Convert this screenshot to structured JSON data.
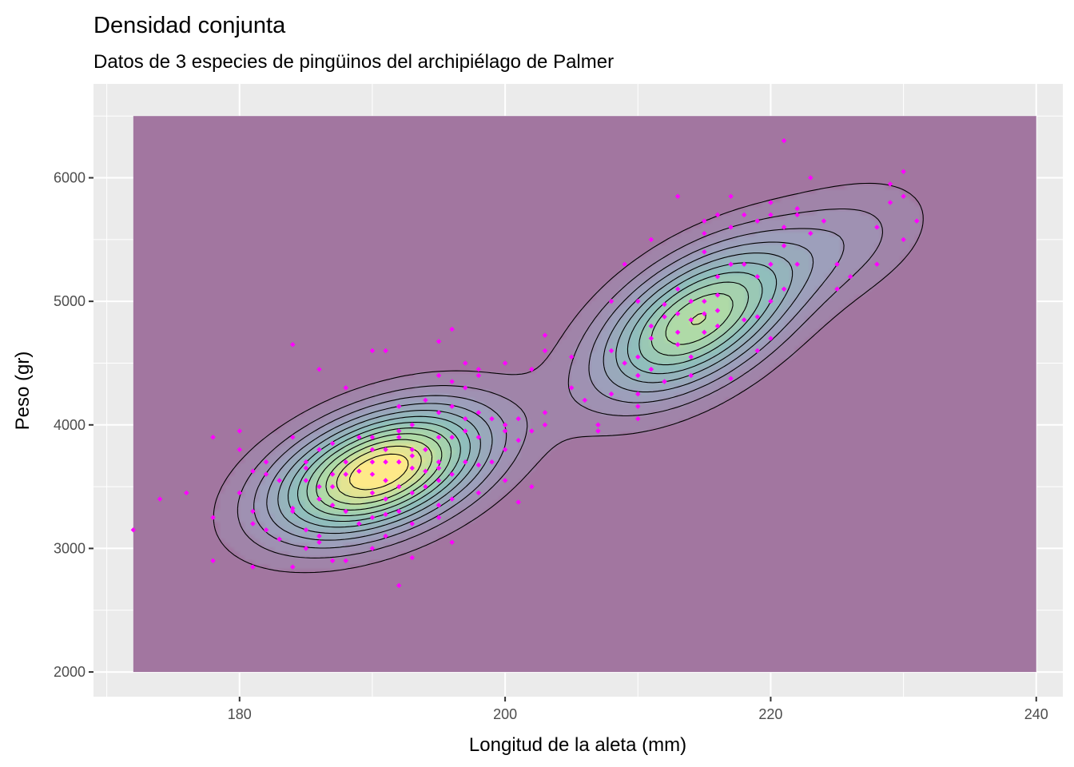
{
  "chart_data": {
    "type": "contour",
    "title": "Densidad conjunta",
    "subtitle": "Datos de 3 especies de pingüinos del archipiélago de Palmer",
    "xlabel": "Longitud de la aleta (mm)",
    "ylabel": "Peso (gr)",
    "xlim": [
      169,
      242
    ],
    "ylim": [
      1800,
      6760
    ],
    "x_ticks": [
      180,
      200,
      220,
      240
    ],
    "y_ticks": [
      2000,
      3000,
      4000,
      5000,
      6000
    ],
    "x_tick_labels": [
      "180",
      "200",
      "220",
      "240"
    ],
    "y_tick_labels": [
      "2000",
      "3000",
      "4000",
      "5000",
      "6000"
    ],
    "density_extent": {
      "x": [
        172,
        240
      ],
      "y": [
        2000,
        6500
      ]
    },
    "grid": true,
    "legend": "none",
    "colors": {
      "panel_background": "#ebebeb",
      "grid": "#ffffff",
      "density_low": "#440154",
      "density_high": "#fde725",
      "fill_alpha": 0.5,
      "contour_line": "#000000",
      "points": "#ff00ff"
    },
    "density_components": [
      {
        "mx": 190.5,
        "my": 3620,
        "sx": 5.5,
        "sy": 360,
        "rho": 0.45,
        "w": 0.52
      },
      {
        "mx": 214.5,
        "my": 4850,
        "sx": 5.2,
        "sy": 430,
        "rho": 0.55,
        "w": 0.4
      },
      {
        "mx": 226,
        "my": 5500,
        "sx": 4.5,
        "sy": 350,
        "rho": 0.4,
        "w": 0.08
      }
    ],
    "contour_levels": 13,
    "points": [
      [
        172,
        3150
      ],
      [
        174,
        3400
      ],
      [
        176,
        3450
      ],
      [
        178,
        3250
      ],
      [
        178,
        2900
      ],
      [
        178,
        3900
      ],
      [
        180,
        3950
      ],
      [
        180,
        3800
      ],
      [
        180,
        3450
      ],
      [
        181,
        3625
      ],
      [
        181,
        3300
      ],
      [
        181,
        3200
      ],
      [
        181,
        2850
      ],
      [
        182,
        3700
      ],
      [
        182,
        3150
      ],
      [
        182,
        3600
      ],
      [
        183,
        3550
      ],
      [
        183,
        3075
      ],
      [
        184,
        4650
      ],
      [
        184,
        3900
      ],
      [
        184,
        3300
      ],
      [
        184,
        2850
      ],
      [
        184,
        3325
      ],
      [
        185,
        3650
      ],
      [
        185,
        3700
      ],
      [
        185,
        3550
      ],
      [
        185,
        3150
      ],
      [
        185,
        3000
      ],
      [
        186,
        4450
      ],
      [
        186,
        3500
      ],
      [
        186,
        3800
      ],
      [
        186,
        3100
      ],
      [
        186,
        3050
      ],
      [
        186,
        3400
      ],
      [
        187,
        3600
      ],
      [
        187,
        3850
      ],
      [
        187,
        2900
      ],
      [
        187,
        3350
      ],
      [
        187,
        3500
      ],
      [
        188,
        4300
      ],
      [
        188,
        3700
      ],
      [
        188,
        3300
      ],
      [
        188,
        2900
      ],
      [
        188,
        3600
      ],
      [
        189,
        3900
      ],
      [
        189,
        3200
      ],
      [
        189,
        3625
      ],
      [
        190,
        4600
      ],
      [
        190,
        3450
      ],
      [
        190,
        3800
      ],
      [
        190,
        3700
      ],
      [
        190,
        3250
      ],
      [
        190,
        3900
      ],
      [
        190,
        3600
      ],
      [
        190,
        3000
      ],
      [
        191,
        4600
      ],
      [
        191,
        3700
      ],
      [
        191,
        3100
      ],
      [
        191,
        3400
      ],
      [
        191,
        3800
      ],
      [
        191,
        3550
      ],
      [
        191,
        3275
      ],
      [
        192,
        4150
      ],
      [
        192,
        3500
      ],
      [
        192,
        3700
      ],
      [
        192,
        3950
      ],
      [
        192,
        3300
      ],
      [
        192,
        2700
      ],
      [
        192,
        3900
      ],
      [
        193,
        4000
      ],
      [
        193,
        3800
      ],
      [
        193,
        3450
      ],
      [
        193,
        3650
      ],
      [
        193,
        2925
      ],
      [
        193,
        3200
      ],
      [
        193,
        3750
      ],
      [
        194,
        4200
      ],
      [
        194,
        3500
      ],
      [
        194,
        3625
      ],
      [
        194,
        3800
      ],
      [
        195,
        4400
      ],
      [
        195,
        3700
      ],
      [
        195,
        4100
      ],
      [
        195,
        3350
      ],
      [
        195,
        3900
      ],
      [
        195,
        4675
      ],
      [
        195,
        3250
      ],
      [
        195,
        3550
      ],
      [
        195,
        3650
      ],
      [
        196,
        3900
      ],
      [
        196,
        4150
      ],
      [
        196,
        3600
      ],
      [
        196,
        3400
      ],
      [
        196,
        4775
      ],
      [
        196,
        3050
      ],
      [
        196,
        4350
      ],
      [
        197,
        3700
      ],
      [
        197,
        4500
      ],
      [
        197,
        3950
      ],
      [
        197,
        4050
      ],
      [
        197,
        4300
      ],
      [
        198,
        4100
      ],
      [
        198,
        3450
      ],
      [
        198,
        3675
      ],
      [
        198,
        3900
      ],
      [
        198,
        4400
      ],
      [
        198,
        4450
      ],
      [
        199,
        4050
      ],
      [
        199,
        3700
      ],
      [
        200,
        3950
      ],
      [
        200,
        4000
      ],
      [
        200,
        3800
      ],
      [
        200,
        4500
      ],
      [
        200,
        3550
      ],
      [
        201,
        4050
      ],
      [
        201,
        3375
      ],
      [
        201,
        3875
      ],
      [
        202,
        3500
      ],
      [
        202,
        3950
      ],
      [
        202,
        4450
      ],
      [
        203,
        4100
      ],
      [
        203,
        4725
      ],
      [
        203,
        4000
      ],
      [
        203,
        4600
      ],
      [
        205,
        4550
      ],
      [
        205,
        4300
      ],
      [
        206,
        4200
      ],
      [
        207,
        3950
      ],
      [
        207,
        4000
      ],
      [
        208,
        5000
      ],
      [
        208,
        4250
      ],
      [
        208,
        4600
      ],
      [
        209,
        5300
      ],
      [
        209,
        4500
      ],
      [
        210,
        5000
      ],
      [
        210,
        4250
      ],
      [
        210,
        4150
      ],
      [
        210,
        4550
      ],
      [
        210,
        4400
      ],
      [
        210,
        4050
      ],
      [
        211,
        4800
      ],
      [
        211,
        4700
      ],
      [
        211,
        4450
      ],
      [
        211,
        5500
      ],
      [
        212,
        4350
      ],
      [
        212,
        4875
      ],
      [
        212,
        4975
      ],
      [
        213,
        5100
      ],
      [
        213,
        4650
      ],
      [
        213,
        4900
      ],
      [
        213,
        4750
      ],
      [
        213,
        5850
      ],
      [
        214,
        4550
      ],
      [
        214,
        4400
      ],
      [
        214,
        5000
      ],
      [
        214,
        4850
      ],
      [
        215,
        5400
      ],
      [
        215,
        5000
      ],
      [
        215,
        4900
      ],
      [
        215,
        5650
      ],
      [
        215,
        4750
      ],
      [
        215,
        5550
      ],
      [
        216,
        5050
      ],
      [
        216,
        5200
      ],
      [
        216,
        4800
      ],
      [
        216,
        5700
      ],
      [
        216,
        4925
      ],
      [
        217,
        5600
      ],
      [
        217,
        5850
      ],
      [
        217,
        4375
      ],
      [
        217,
        5300
      ],
      [
        218,
        5700
      ],
      [
        218,
        5300
      ],
      [
        218,
        4850
      ],
      [
        219,
        5200
      ],
      [
        219,
        5650
      ],
      [
        219,
        4875
      ],
      [
        219,
        4600
      ],
      [
        220,
        5800
      ],
      [
        220,
        5700
      ],
      [
        220,
        5300
      ],
      [
        220,
        5000
      ],
      [
        220,
        4700
      ],
      [
        221,
        5600
      ],
      [
        221,
        6300
      ],
      [
        221,
        5450
      ],
      [
        221,
        5100
      ],
      [
        222,
        5750
      ],
      [
        222,
        5700
      ],
      [
        222,
        5300
      ],
      [
        223,
        5550
      ],
      [
        223,
        6000
      ],
      [
        224,
        5650
      ],
      [
        225,
        5300
      ],
      [
        225,
        5100
      ],
      [
        226,
        5200
      ],
      [
        228,
        5600
      ],
      [
        228,
        5300
      ],
      [
        229,
        5800
      ],
      [
        229,
        5950
      ],
      [
        230,
        6050
      ],
      [
        230,
        5500
      ],
      [
        230,
        5850
      ],
      [
        231,
        5650
      ]
    ]
  }
}
